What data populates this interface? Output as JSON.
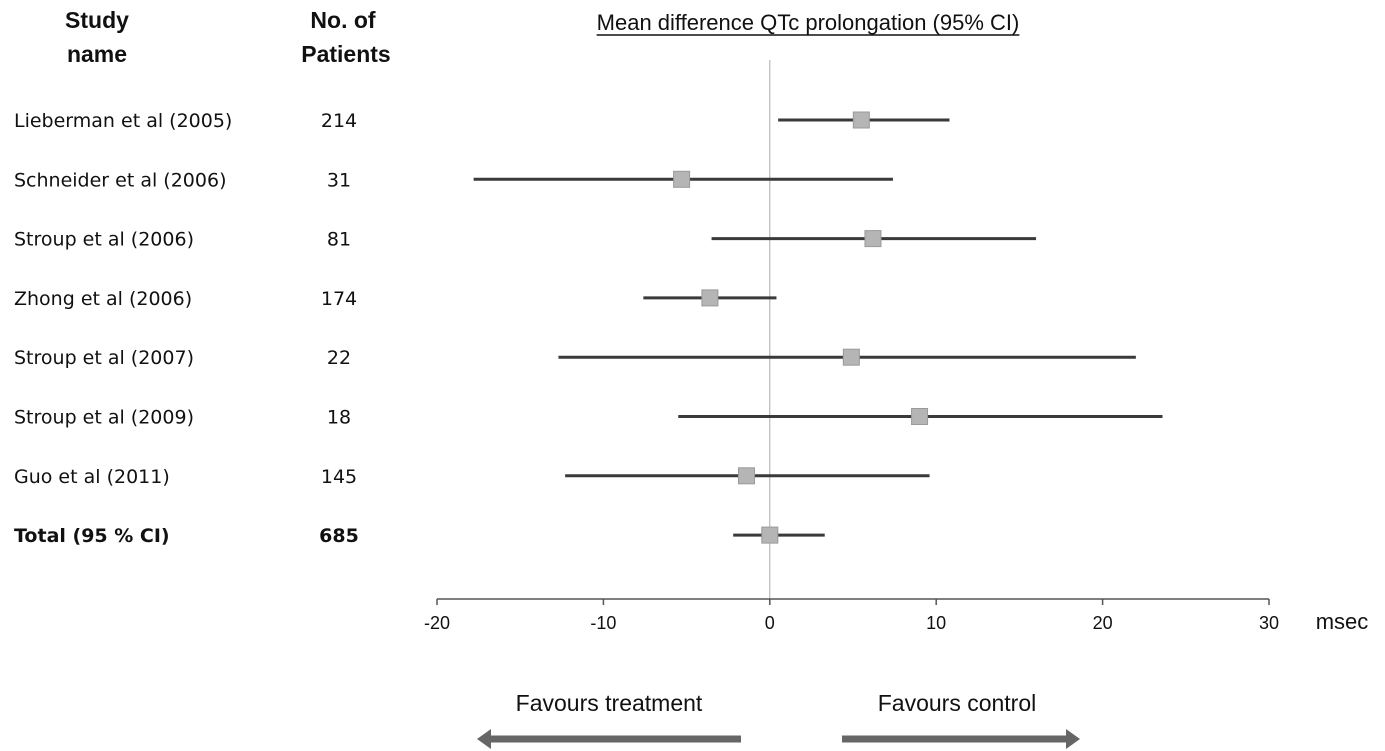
{
  "headers": {
    "study_line1": "Study",
    "study_line2": "name",
    "n_line1": "No. of",
    "n_line2": "Patients",
    "title": "Mean difference QTc prolongation (95% CI)"
  },
  "axis": {
    "unit": "msec",
    "ticks": [
      "-20",
      "-10",
      "0",
      "10",
      "20",
      "30"
    ]
  },
  "favours": {
    "left": "Favours treatment",
    "right": "Favours control"
  },
  "colors": {
    "ci_line": "#3a3a3a",
    "marker": "#b5b5b5",
    "axis": "#555555",
    "arrow": "#666666"
  },
  "chart_data": {
    "type": "forest",
    "title": "Mean difference QTc prolongation (95% CI)",
    "xlabel": "msec",
    "xlim": [
      -20,
      30
    ],
    "xticks": [
      -20,
      -10,
      0,
      10,
      20,
      30
    ],
    "reference_line": 0,
    "studies": [
      {
        "name": "Lieberman et al (2005)",
        "n": "214",
        "estimate": 5.5,
        "ci_low": 0.5,
        "ci_high": 10.8
      },
      {
        "name": "Schneider et al (2006)",
        "n": "31",
        "estimate": -5.3,
        "ci_low": -17.8,
        "ci_high": 7.4
      },
      {
        "name": "Stroup et al (2006)",
        "n": "81",
        "estimate": 6.2,
        "ci_low": -3.5,
        "ci_high": 16.0
      },
      {
        "name": "Zhong et al (2006)",
        "n": "174",
        "estimate": -3.6,
        "ci_low": -7.6,
        "ci_high": 0.4
      },
      {
        "name": "Stroup et al (2007)",
        "n": "22",
        "estimate": 4.9,
        "ci_low": -12.7,
        "ci_high": 22.0
      },
      {
        "name": "Stroup et al (2009)",
        "n": "18",
        "estimate": 9.0,
        "ci_low": -5.5,
        "ci_high": 23.6
      },
      {
        "name": "Guo et al (2011)",
        "n": "145",
        "estimate": -1.4,
        "ci_low": -12.3,
        "ci_high": 9.6
      }
    ],
    "total": {
      "name": "Total (95 % CI)",
      "n": "685",
      "estimate": 0.0,
      "ci_low": -2.2,
      "ci_high": 3.3
    }
  }
}
